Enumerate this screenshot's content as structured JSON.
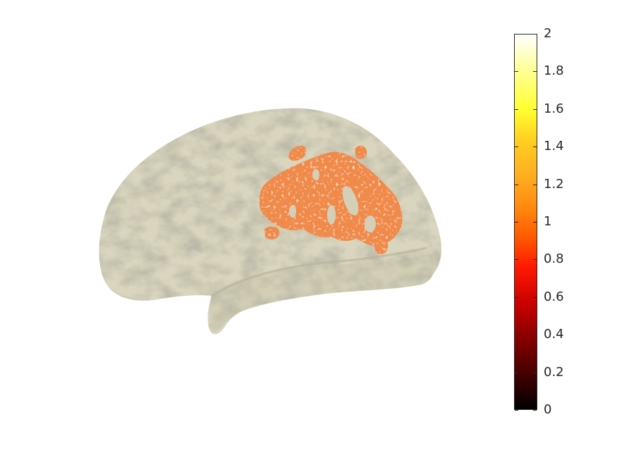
{
  "figure": {
    "description_name": "cortical surface overlay",
    "surface_color": "#d8d4bc",
    "overlay_color": "#f08a4a"
  },
  "colorbar": {
    "min": 0,
    "max": 2,
    "ticks": [
      "0",
      "0.2",
      "0.4",
      "0.6",
      "0.8",
      "1",
      "1.2",
      "1.4",
      "1.6",
      "1.8",
      "2"
    ],
    "colormap": "hot"
  }
}
